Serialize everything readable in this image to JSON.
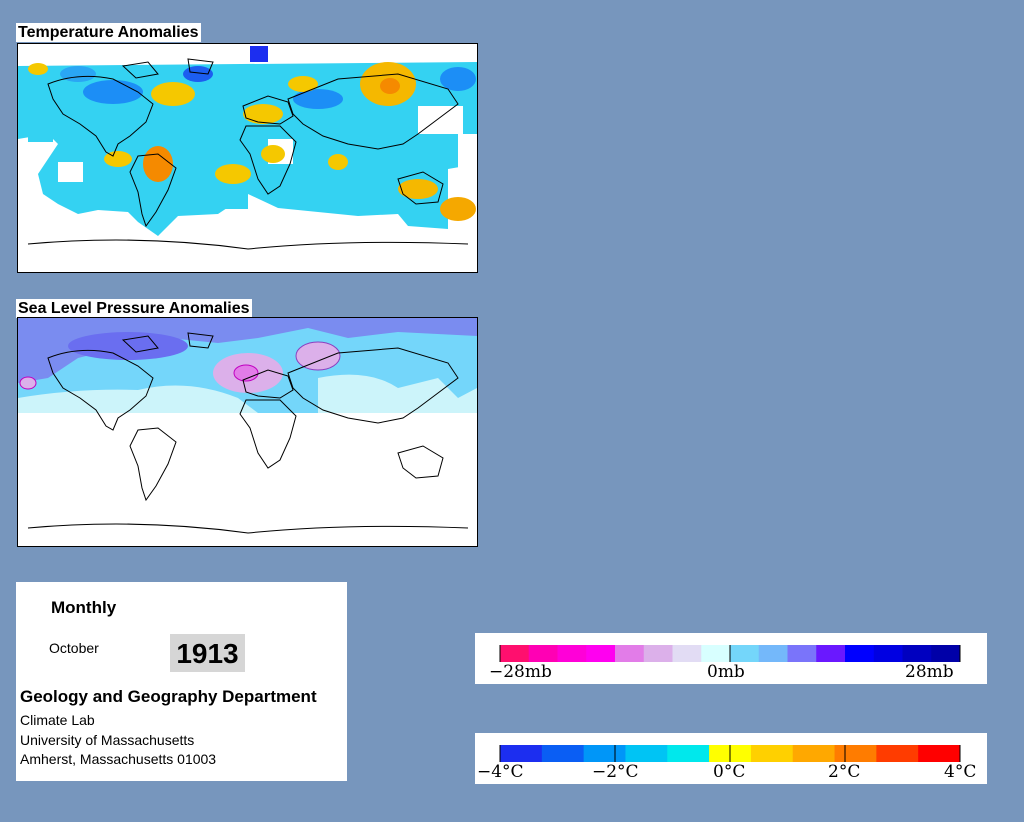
{
  "panels": {
    "temperature": {
      "title": "Temperature Anomalies"
    },
    "pressure": {
      "title": "Sea Level Pressure Anomalies"
    }
  },
  "info": {
    "period": "Monthly",
    "month": "October",
    "year": "1913",
    "department": "Geology and Geography Department",
    "lab": "Climate Lab",
    "university": "University of Massachusetts",
    "address": "Amherst, Massachusetts 01003"
  },
  "legends": {
    "pressure": {
      "labels": [
        "−28mb",
        "0mb",
        "28mb"
      ],
      "colors": [
        "#ff0f6e",
        "#ff00b4",
        "#ff00d8",
        "#ff00f0",
        "#e27ce8",
        "#dcb0ea",
        "#e2dcf4",
        "#d8ffff",
        "#74d6fa",
        "#74b8fa",
        "#7a74fa",
        "#6a18ff",
        "#0000ff",
        "#0000e2",
        "#0000c0",
        "#0000a8"
      ]
    },
    "temperature": {
      "labels": [
        "−4°C",
        "−2°C",
        "0°C",
        "2°C",
        "4°C"
      ],
      "colors": [
        "#1c2ef0",
        "#0a5ef4",
        "#0096f8",
        "#00c4f4",
        "#00e8ec",
        "#ffff00",
        "#ffd000",
        "#ffa800",
        "#ff7c00",
        "#ff3c00",
        "#ff0000"
      ]
    }
  },
  "colors": {
    "background": "#7796bd",
    "ocean_cool": "#34d2f2",
    "warm": "#f5b800",
    "pressure_light": "#ccf4fa"
  }
}
